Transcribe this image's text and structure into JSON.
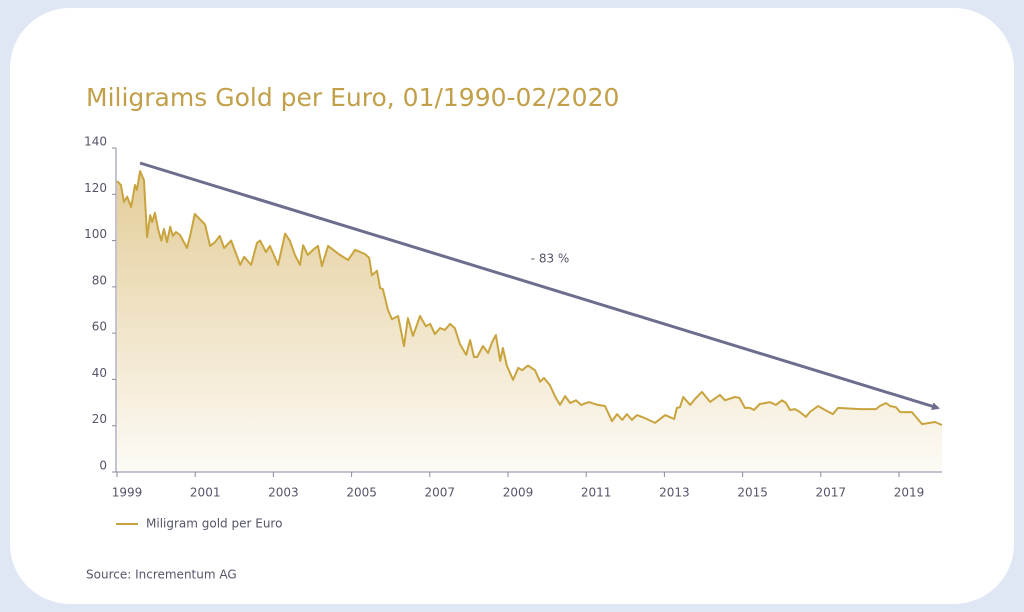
{
  "chart_data": {
    "type": "area",
    "title": "Miligrams Gold per Euro, 01/1990-02/2020",
    "source": "Source: Incrementum AG",
    "annotation": "- 83 %",
    "x": [
      1999.0,
      1999.1,
      1999.18,
      1999.26,
      1999.36,
      1999.46,
      1999.51,
      1999.59,
      1999.69,
      1999.77,
      1999.85,
      1999.9,
      1999.97,
      2000.05,
      2000.13,
      2000.2,
      2000.28,
      2000.36,
      2000.43,
      2000.51,
      2000.61,
      2000.69,
      2000.79,
      2000.87,
      2000.99,
      2001.25,
      2001.38,
      2001.51,
      2001.63,
      2001.74,
      2001.92,
      2002.15,
      2002.25,
      2002.43,
      2002.58,
      2002.66,
      2002.81,
      2002.91,
      2003.12,
      2003.3,
      2003.42,
      2003.55,
      2003.68,
      2003.76,
      2003.88,
      2004.04,
      2004.14,
      2004.24,
      2004.4,
      2004.7,
      2004.91,
      2005.09,
      2005.34,
      2005.45,
      2005.52,
      2005.65,
      2005.73,
      2005.8,
      2005.93,
      2006.03,
      2006.19,
      2006.34,
      2006.44,
      2006.57,
      2006.75,
      2006.9,
      2007.01,
      2007.13,
      2007.26,
      2007.39,
      2007.52,
      2007.64,
      2007.77,
      2007.93,
      2008.03,
      2008.13,
      2008.21,
      2008.36,
      2008.49,
      2008.59,
      2008.69,
      2008.8,
      2008.87,
      2008.97,
      2009.13,
      2009.26,
      2009.36,
      2009.51,
      2009.69,
      2009.82,
      2009.92,
      2010.07,
      2010.2,
      2010.33,
      2010.46,
      2010.59,
      2010.74,
      2010.87,
      2011.07,
      2011.3,
      2011.48,
      2011.66,
      2011.79,
      2011.92,
      2012.04,
      2012.17,
      2012.3,
      2012.5,
      2012.76,
      2013.02,
      2013.25,
      2013.32,
      2013.4,
      2013.48,
      2013.66,
      2013.78,
      2013.96,
      2014.17,
      2014.42,
      2014.55,
      2014.8,
      2014.92,
      2015.06,
      2015.19,
      2015.29,
      2015.44,
      2015.7,
      2015.85,
      2016.01,
      2016.11,
      2016.21,
      2016.34,
      2016.47,
      2016.62,
      2016.72,
      2016.93,
      2017.11,
      2017.31,
      2017.44,
      2018.0,
      2018.41,
      2018.51,
      2018.67,
      2018.77,
      2018.92,
      2019.03,
      2019.33,
      2019.59,
      2019.92,
      2020.1
    ],
    "series": [
      {
        "name": "Miligram gold per Euro",
        "color": "#c9a43e",
        "values": [
          125.7,
          124,
          116.7,
          119,
          114.5,
          124,
          121.9,
          130,
          126,
          101.5,
          111,
          108,
          112,
          105,
          100,
          105,
          99.4,
          106,
          102,
          103.7,
          102.4,
          100,
          96.8,
          102,
          111.5,
          107,
          97.7,
          99.4,
          102,
          96.8,
          100,
          89.5,
          93,
          89.5,
          99,
          100,
          95,
          97.7,
          89.5,
          103,
          100,
          93.8,
          89.5,
          98,
          93.8,
          96.4,
          97.7,
          89,
          97.7,
          93.8,
          91.6,
          96,
          94.2,
          92.5,
          85,
          87,
          79.5,
          79,
          70,
          66,
          67.4,
          54.4,
          66.5,
          58.8,
          67.4,
          63,
          64,
          59.6,
          62.2,
          61.4,
          64,
          62.2,
          55.3,
          50.6,
          57,
          49.7,
          49.7,
          54.4,
          51.4,
          56,
          59.2,
          48,
          53.6,
          46,
          39.8,
          45,
          44,
          46,
          44,
          39,
          40.6,
          37.6,
          32.8,
          29,
          32.8,
          29.8,
          31,
          29,
          30.2,
          29,
          28.5,
          22,
          25,
          22.5,
          25,
          22.5,
          24.6,
          23.3,
          21.2,
          24.6,
          22.9,
          27.7,
          28,
          32.4,
          29,
          31.5,
          34.6,
          30.3,
          33.3,
          31,
          32.4,
          32,
          27.7,
          27.7,
          26.8,
          29.4,
          30.2,
          29,
          31,
          29.8,
          26.8,
          27.2,
          25.9,
          23.8,
          25.9,
          28.5,
          26.8,
          25,
          27.7,
          27.2,
          27.2,
          28.5,
          29.8,
          28.5,
          28,
          25.9,
          25.9,
          20.7,
          21.6,
          20.3
        ]
      }
    ],
    "xlim": [
      1999,
      2020.1
    ],
    "xticks": [
      1999,
      2001,
      2003,
      2005,
      2007,
      2009,
      2011,
      2013,
      2015,
      2017,
      2019
    ],
    "ylim": [
      0,
      140
    ],
    "yticks": [
      0,
      20,
      40,
      60,
      80,
      100,
      120,
      140
    ],
    "legend": "bottom-left"
  }
}
